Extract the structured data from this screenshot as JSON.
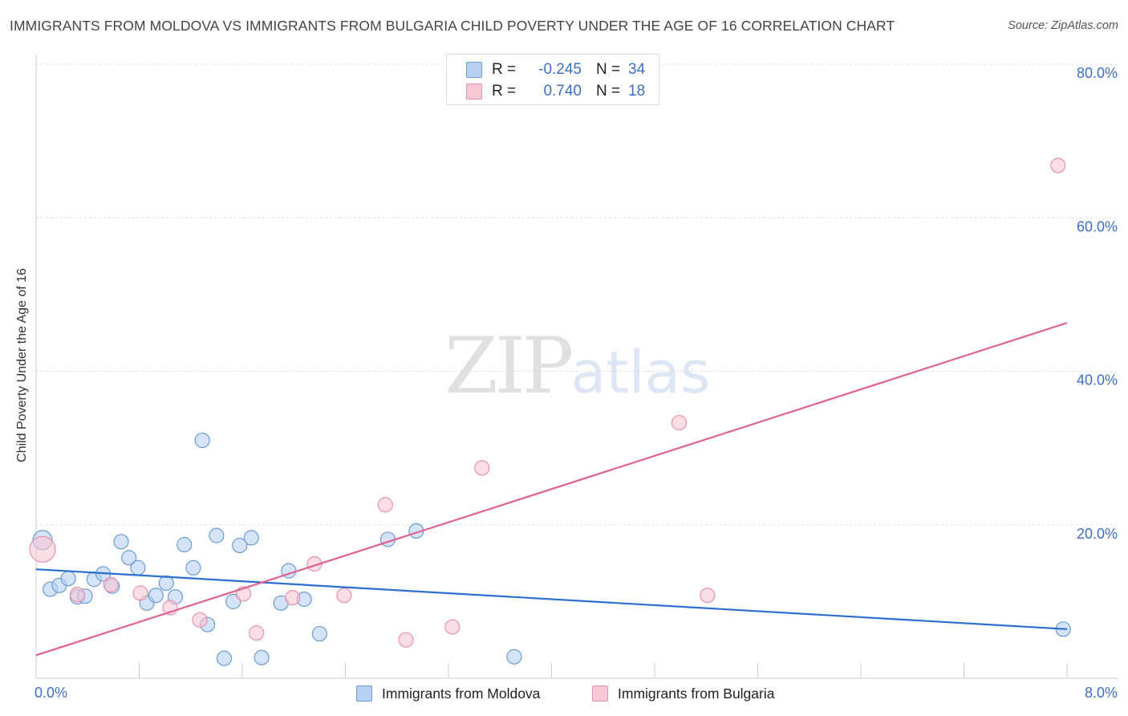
{
  "title": "IMMIGRANTS FROM MOLDOVA VS IMMIGRANTS FROM BULGARIA CHILD POVERTY UNDER THE AGE OF 16 CORRELATION CHART",
  "source": "Source: ZipAtlas.com",
  "watermark": {
    "zip": "ZIP",
    "atlas": "atlas"
  },
  "legend": {
    "rows": [
      {
        "r_label": "R =",
        "r_value": "-0.245",
        "n_label": "N =",
        "n_value": "34"
      },
      {
        "r_label": "R =",
        "r_value": "0.740",
        "n_label": "N =",
        "n_value": "18"
      }
    ]
  },
  "colors": {
    "moldova_fill": "#b8d1f3",
    "moldova_stroke": "#6a9bd8",
    "moldova_line": "#2c6fcf",
    "bulgaria_fill": "#f8c7d6",
    "bulgaria_stroke": "#e891ac",
    "bulgaria_line": "#e0628e",
    "axis_text": "#3d6fc7",
    "grid": "#dddddd"
  },
  "chart_data": {
    "type": "scatter",
    "title": "IMMIGRANTS FROM MOLDOVA VS IMMIGRANTS FROM BULGARIA CHILD POVERTY UNDER THE AGE OF 16 CORRELATION CHART",
    "xlabel": "",
    "ylabel": "Child Poverty Under the Age of 16",
    "xlim": [
      0,
      8
    ],
    "ylim": [
      0,
      80
    ],
    "x_tick_labels": [
      "0.0%",
      "8.0%"
    ],
    "y_ticks": [
      20,
      40,
      60,
      80
    ],
    "y_tick_labels": [
      "20.0%",
      "40.0%",
      "60.0%",
      "80.0%"
    ],
    "legend_position": "top-center",
    "series": [
      {
        "name": "Immigrants from Moldova",
        "trend": [
          [
            0,
            14.2
          ],
          [
            8,
            6.4
          ]
        ],
        "points": [
          [
            0.05,
            18.0,
            12
          ],
          [
            0.11,
            11.6,
            9
          ],
          [
            0.18,
            12.1,
            9
          ],
          [
            0.25,
            13.0,
            9
          ],
          [
            0.32,
            10.6,
            9
          ],
          [
            0.38,
            10.7,
            9
          ],
          [
            0.45,
            12.9,
            9
          ],
          [
            0.52,
            13.6,
            9
          ],
          [
            0.59,
            12.0,
            9
          ],
          [
            0.66,
            17.8,
            9
          ],
          [
            0.72,
            15.7,
            9
          ],
          [
            0.79,
            14.4,
            9
          ],
          [
            0.86,
            9.8,
            9
          ],
          [
            0.93,
            10.8,
            9
          ],
          [
            1.01,
            12.4,
            9
          ],
          [
            1.08,
            10.6,
            9
          ],
          [
            1.15,
            17.4,
            9
          ],
          [
            1.22,
            14.4,
            9
          ],
          [
            1.29,
            31.0,
            9
          ],
          [
            1.33,
            7.0,
            9
          ],
          [
            1.4,
            18.6,
            9
          ],
          [
            1.46,
            2.6,
            9
          ],
          [
            1.53,
            10.0,
            9
          ],
          [
            1.58,
            17.3,
            9
          ],
          [
            1.67,
            18.3,
            9
          ],
          [
            1.75,
            2.7,
            9
          ],
          [
            1.9,
            9.8,
            9
          ],
          [
            1.96,
            14.0,
            9
          ],
          [
            2.08,
            10.3,
            9
          ],
          [
            2.2,
            5.8,
            9
          ],
          [
            2.73,
            18.1,
            9
          ],
          [
            2.95,
            19.2,
            9
          ],
          [
            3.71,
            2.8,
            9
          ],
          [
            7.97,
            6.4,
            9
          ]
        ]
      },
      {
        "name": "Immigrants from Bulgaria",
        "trend": [
          [
            0,
            3.0
          ],
          [
            8,
            46.3
          ]
        ],
        "points": [
          [
            0.05,
            16.8,
            16
          ],
          [
            0.32,
            10.9,
            9
          ],
          [
            0.58,
            12.2,
            9
          ],
          [
            0.81,
            11.1,
            9
          ],
          [
            1.04,
            9.2,
            9
          ],
          [
            1.27,
            7.6,
            9
          ],
          [
            1.61,
            11.0,
            9
          ],
          [
            1.71,
            5.9,
            9
          ],
          [
            1.99,
            10.5,
            9
          ],
          [
            2.16,
            14.9,
            9
          ],
          [
            2.39,
            10.8,
            9
          ],
          [
            2.71,
            22.6,
            9
          ],
          [
            2.87,
            5.0,
            9
          ],
          [
            3.23,
            6.7,
            9
          ],
          [
            3.46,
            27.4,
            9
          ],
          [
            4.99,
            33.3,
            9
          ],
          [
            5.21,
            10.8,
            9
          ],
          [
            7.93,
            66.8,
            9
          ]
        ]
      }
    ]
  }
}
